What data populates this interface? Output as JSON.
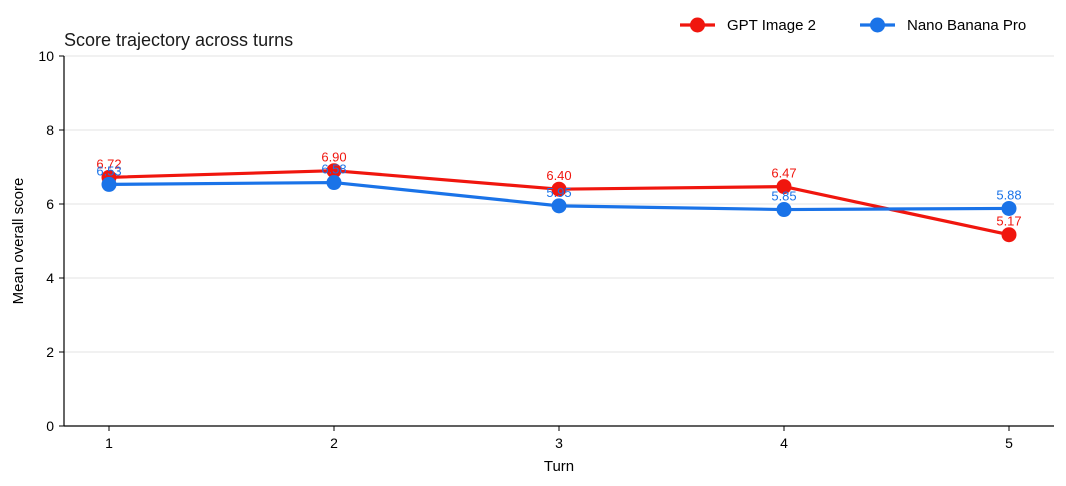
{
  "chart_data": {
    "type": "line",
    "title": "Score trajectory across turns",
    "xlabel": "Turn",
    "ylabel": "Mean overall score",
    "x": [
      1,
      2,
      3,
      4,
      5
    ],
    "x_tick_labels": [
      "1",
      "2",
      "3",
      "4",
      "5"
    ],
    "ylim": [
      0,
      10
    ],
    "y_ticks": [
      0,
      2,
      4,
      6,
      8,
      10
    ],
    "y_tick_labels": [
      "0",
      "2",
      "4",
      "6",
      "8",
      "10"
    ],
    "grid": "horizontal",
    "legend_position": "top-right",
    "series": [
      {
        "name": "GPT Image 2",
        "color": "#f0160e",
        "values": [
          6.72,
          6.9,
          6.4,
          6.47,
          5.17
        ],
        "labels": [
          "6.72",
          "6.90",
          "6.40",
          "6.47",
          "5.17"
        ]
      },
      {
        "name": "Nano Banana Pro",
        "color": "#1a73e8",
        "values": [
          6.53,
          6.58,
          5.95,
          5.85,
          5.88
        ],
        "labels": [
          "6.53",
          "6.58",
          "5.95",
          "5.85",
          "5.88"
        ]
      }
    ]
  }
}
